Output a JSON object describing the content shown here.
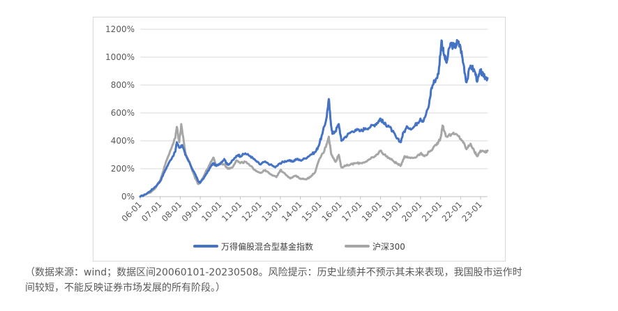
{
  "chart_data": {
    "type": "line",
    "y_axis": {
      "min": 0,
      "max": 1200,
      "step": 200,
      "tick_labels": [
        "0%",
        "200%",
        "400%",
        "600%",
        "800%",
        "1000%",
        "1200%"
      ]
    },
    "x_axis": {
      "tick_labels": [
        "06-01",
        "07-01",
        "08-01",
        "09-01",
        "10-01",
        "11-01",
        "12-01",
        "13-01",
        "14-01",
        "15-01",
        "16-01",
        "17-01",
        "18-01",
        "19-01",
        "20-01",
        "21-01",
        "22-01",
        "23-01"
      ],
      "start": 2006.0,
      "end": 2023.35
    },
    "grid": true,
    "legend_position": "bottom",
    "series": [
      {
        "name": "万得偏股混合型基金指数",
        "color": "#4472c4",
        "points": [
          [
            2006.0,
            0
          ],
          [
            2006.25,
            15
          ],
          [
            2006.5,
            40
          ],
          [
            2006.75,
            70
          ],
          [
            2007.0,
            110
          ],
          [
            2007.25,
            190
          ],
          [
            2007.5,
            260
          ],
          [
            2007.75,
            320
          ],
          [
            2007.83,
            390
          ],
          [
            2007.95,
            350
          ],
          [
            2008.1,
            370
          ],
          [
            2008.25,
            300
          ],
          [
            2008.5,
            230
          ],
          [
            2008.75,
            160
          ],
          [
            2008.9,
            110
          ],
          [
            2009.0,
            100
          ],
          [
            2009.25,
            150
          ],
          [
            2009.5,
            210
          ],
          [
            2009.65,
            240
          ],
          [
            2009.8,
            220
          ],
          [
            2010.0,
            240
          ],
          [
            2010.2,
            270
          ],
          [
            2010.35,
            230
          ],
          [
            2010.5,
            240
          ],
          [
            2010.75,
            280
          ],
          [
            2010.9,
            300
          ],
          [
            2011.0,
            290
          ],
          [
            2011.25,
            310
          ],
          [
            2011.5,
            290
          ],
          [
            2011.75,
            260
          ],
          [
            2012.0,
            230
          ],
          [
            2012.2,
            250
          ],
          [
            2012.5,
            230
          ],
          [
            2012.75,
            210
          ],
          [
            2013.0,
            240
          ],
          [
            2013.15,
            250
          ],
          [
            2013.4,
            260
          ],
          [
            2013.6,
            250
          ],
          [
            2013.8,
            270
          ],
          [
            2014.0,
            260
          ],
          [
            2014.25,
            275
          ],
          [
            2014.5,
            300
          ],
          [
            2014.75,
            320
          ],
          [
            2014.9,
            360
          ],
          [
            2015.1,
            450
          ],
          [
            2015.3,
            560
          ],
          [
            2015.42,
            700
          ],
          [
            2015.5,
            560
          ],
          [
            2015.6,
            450
          ],
          [
            2015.75,
            470
          ],
          [
            2015.92,
            520
          ],
          [
            2016.05,
            400
          ],
          [
            2016.25,
            430
          ],
          [
            2016.5,
            460
          ],
          [
            2016.75,
            480
          ],
          [
            2017.0,
            470
          ],
          [
            2017.25,
            490
          ],
          [
            2017.5,
            500
          ],
          [
            2017.75,
            520
          ],
          [
            2017.9,
            540
          ],
          [
            2018.0,
            560
          ],
          [
            2018.2,
            520
          ],
          [
            2018.4,
            510
          ],
          [
            2018.6,
            470
          ],
          [
            2018.8,
            420
          ],
          [
            2019.0,
            390
          ],
          [
            2019.15,
            460
          ],
          [
            2019.35,
            500
          ],
          [
            2019.6,
            490
          ],
          [
            2019.85,
            530
          ],
          [
            2020.0,
            560
          ],
          [
            2020.15,
            540
          ],
          [
            2020.4,
            640
          ],
          [
            2020.55,
            780
          ],
          [
            2020.7,
            830
          ],
          [
            2020.9,
            880
          ],
          [
            2021.05,
            1120
          ],
          [
            2021.15,
            1030
          ],
          [
            2021.3,
            960
          ],
          [
            2021.5,
            1100
          ],
          [
            2021.7,
            1070
          ],
          [
            2021.85,
            1110
          ],
          [
            2022.0,
            1070
          ],
          [
            2022.15,
            950
          ],
          [
            2022.3,
            820
          ],
          [
            2022.5,
            940
          ],
          [
            2022.7,
            900
          ],
          [
            2022.85,
            830
          ],
          [
            2023.0,
            900
          ],
          [
            2023.15,
            860
          ],
          [
            2023.35,
            850
          ]
        ]
      },
      {
        "name": "沪深300",
        "color": "#a6a6a6",
        "points": [
          [
            2006.0,
            0
          ],
          [
            2006.25,
            15
          ],
          [
            2006.5,
            30
          ],
          [
            2006.75,
            60
          ],
          [
            2007.0,
            120
          ],
          [
            2007.25,
            230
          ],
          [
            2007.5,
            330
          ],
          [
            2007.75,
            420
          ],
          [
            2007.83,
            500
          ],
          [
            2007.95,
            390
          ],
          [
            2008.05,
            520
          ],
          [
            2008.25,
            320
          ],
          [
            2008.5,
            230
          ],
          [
            2008.75,
            130
          ],
          [
            2008.9,
            90
          ],
          [
            2009.0,
            100
          ],
          [
            2009.25,
            170
          ],
          [
            2009.5,
            240
          ],
          [
            2009.65,
            280
          ],
          [
            2009.8,
            220
          ],
          [
            2010.0,
            240
          ],
          [
            2010.2,
            230
          ],
          [
            2010.4,
            200
          ],
          [
            2010.6,
            210
          ],
          [
            2010.8,
            260
          ],
          [
            2011.0,
            240
          ],
          [
            2011.25,
            250
          ],
          [
            2011.5,
            220
          ],
          [
            2011.75,
            190
          ],
          [
            2012.0,
            170
          ],
          [
            2012.25,
            190
          ],
          [
            2012.5,
            160
          ],
          [
            2012.8,
            140
          ],
          [
            2013.0,
            190
          ],
          [
            2013.2,
            170
          ],
          [
            2013.5,
            130
          ],
          [
            2013.75,
            150
          ],
          [
            2014.0,
            130
          ],
          [
            2014.25,
            125
          ],
          [
            2014.5,
            140
          ],
          [
            2014.75,
            180
          ],
          [
            2014.95,
            270
          ],
          [
            2015.2,
            330
          ],
          [
            2015.42,
            430
          ],
          [
            2015.55,
            300
          ],
          [
            2015.75,
            250
          ],
          [
            2015.92,
            300
          ],
          [
            2016.05,
            210
          ],
          [
            2016.25,
            220
          ],
          [
            2016.5,
            230
          ],
          [
            2016.75,
            240
          ],
          [
            2017.0,
            240
          ],
          [
            2017.25,
            250
          ],
          [
            2017.5,
            270
          ],
          [
            2017.75,
            290
          ],
          [
            2018.0,
            330
          ],
          [
            2018.2,
            300
          ],
          [
            2018.4,
            280
          ],
          [
            2018.6,
            260
          ],
          [
            2018.8,
            240
          ],
          [
            2019.0,
            220
          ],
          [
            2019.2,
            290
          ],
          [
            2019.4,
            280
          ],
          [
            2019.7,
            280
          ],
          [
            2020.0,
            310
          ],
          [
            2020.2,
            290
          ],
          [
            2020.5,
            330
          ],
          [
            2020.8,
            370
          ],
          [
            2021.0,
            420
          ],
          [
            2021.1,
            510
          ],
          [
            2021.3,
            430
          ],
          [
            2021.6,
            450
          ],
          [
            2021.85,
            440
          ],
          [
            2022.1,
            400
          ],
          [
            2022.3,
            340
          ],
          [
            2022.5,
            380
          ],
          [
            2022.7,
            320
          ],
          [
            2022.85,
            290
          ],
          [
            2023.0,
            330
          ],
          [
            2023.2,
            320
          ],
          [
            2023.35,
            330
          ]
        ]
      }
    ]
  },
  "footnote": {
    "line1": "（数据来源：wind；数据区间20060101-20230508。风险提示：历史业绩并不预示其未来表现，我国股市运作时",
    "line2": "间较短，不能反映证券市场发展的所有阶段。）"
  }
}
